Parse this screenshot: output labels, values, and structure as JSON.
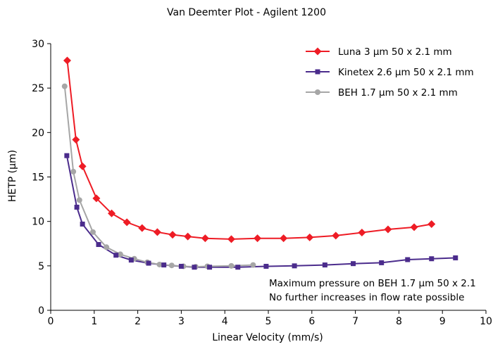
{
  "chart_data": {
    "type": "line",
    "title": "Van Deemter Plot - Agilent 1200",
    "xlabel": "Linear Velocity (mm/s)",
    "ylabel": "HETP (µm)",
    "xlim": [
      0,
      10
    ],
    "ylim": [
      0,
      30
    ],
    "xticks": [
      "0",
      "1",
      "2",
      "3",
      "4",
      "5",
      "6",
      "7",
      "8",
      "9",
      "10"
    ],
    "yticks": [
      "0",
      "5",
      "10",
      "15",
      "20",
      "25",
      "30"
    ],
    "grid": false,
    "legend_position": "top-right",
    "series": [
      {
        "name": "Luna 3 µm 50 x 2.1 mm",
        "color": "#ee1c25",
        "marker": "diamond",
        "x": [
          0.38,
          0.58,
          0.73,
          1.05,
          1.4,
          1.75,
          2.1,
          2.45,
          2.8,
          3.15,
          3.55,
          4.15,
          4.75,
          5.35,
          5.95,
          6.55,
          7.15,
          7.75,
          8.35,
          8.75
        ],
        "y": [
          28.1,
          19.2,
          16.2,
          12.6,
          10.9,
          9.9,
          9.25,
          8.8,
          8.5,
          8.3,
          8.1,
          8.0,
          8.1,
          8.1,
          8.2,
          8.4,
          8.75,
          9.1,
          9.35,
          9.7
        ]
      },
      {
        "name": "Kinetex 2.6 µm 50 x 2.1 mm",
        "color": "#4b2c8c",
        "marker": "square",
        "x": [
          0.37,
          0.6,
          0.73,
          1.1,
          1.5,
          1.85,
          2.25,
          2.6,
          3.0,
          3.3,
          3.65,
          4.3,
          4.95,
          5.6,
          6.3,
          6.95,
          7.6,
          8.2,
          8.75,
          9.3
        ],
        "y": [
          17.4,
          11.6,
          9.7,
          7.4,
          6.2,
          5.65,
          5.3,
          5.1,
          4.95,
          4.85,
          4.85,
          4.85,
          4.95,
          5.0,
          5.1,
          5.25,
          5.35,
          5.7,
          5.8,
          5.9
        ]
      },
      {
        "name": "BEH 1.7 µm 50 x 2.1 mm",
        "color": "#a6a6a6",
        "marker": "circle",
        "x": [
          0.32,
          0.52,
          0.66,
          0.97,
          1.28,
          1.6,
          1.92,
          2.22,
          2.5,
          2.78,
          3.05,
          3.33,
          3.6,
          4.15,
          4.65
        ],
        "y": [
          25.2,
          15.6,
          12.4,
          8.8,
          7.1,
          6.3,
          5.8,
          5.4,
          5.15,
          5.05,
          4.95,
          4.9,
          4.95,
          5.0,
          5.1
        ]
      }
    ],
    "annotations": [
      "Maximum pressure on BEH 1.7 µm 50 x 2.1",
      "No further increases in flow rate possible"
    ]
  }
}
